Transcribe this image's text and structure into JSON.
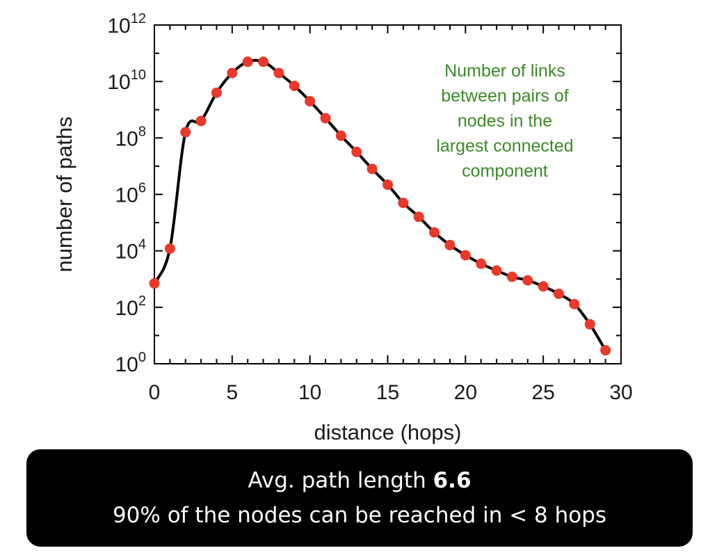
{
  "chart_data": {
    "type": "line",
    "xlabel": "distance (hops)",
    "ylabel": "number of paths",
    "xlim": [
      0,
      30
    ],
    "ylim_log10": [
      0,
      12
    ],
    "y_scale": "log",
    "x_ticks": [
      0,
      5,
      10,
      15,
      20,
      25,
      30
    ],
    "y_tick_exponents": [
      0,
      2,
      4,
      6,
      8,
      10,
      12
    ],
    "y_tick_base": "10",
    "grid": false,
    "marker_color": "#e8392b",
    "line_color": "#000000",
    "annotation": {
      "lines": [
        "Number of links",
        "between pairs of",
        "nodes in the",
        "largest connected",
        "component"
      ],
      "color": "#3c8a28"
    },
    "series": [
      {
        "x": [
          0,
          1,
          2,
          3,
          4,
          5,
          6,
          7,
          8,
          9,
          10,
          11,
          12,
          13,
          14,
          15,
          16,
          17,
          18,
          19,
          20,
          21,
          22,
          23,
          24,
          25,
          26,
          27,
          28,
          29
        ],
        "y": [
          700,
          12000,
          160000000.0,
          400000000.0,
          4000000000.0,
          20000000000.0,
          50000000000.0,
          50000000000.0,
          20000000000.0,
          7000000000.0,
          2000000000.0,
          500000000.0,
          120000000.0,
          32000000.0,
          8000000.0,
          2200000.0,
          500000.0,
          160000.0,
          45000.0,
          16000.0,
          7000.0,
          3500.0,
          2000.0,
          1200.0,
          900.0,
          550.0,
          300.0,
          130.0,
          25.0,
          3
        ]
      }
    ]
  },
  "summary": {
    "line1_prefix": "Avg. path length ",
    "line1_value": "6.6",
    "line2": "90% of the nodes can be reached in < 8 hops"
  }
}
